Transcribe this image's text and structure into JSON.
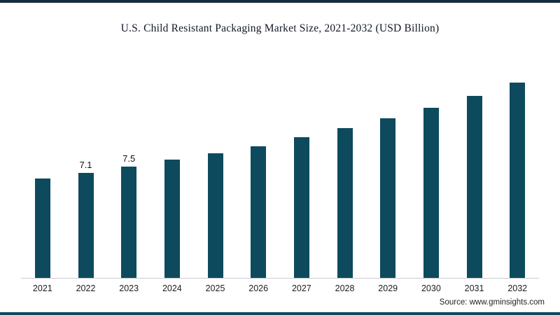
{
  "page": {
    "title": "U.S. Child Resistant Packaging Market Size, 2021-2032 (USD Billion)",
    "source": "Source: www.gminsights.com"
  },
  "colors": {
    "bar": "#0d4a5e",
    "top_rule": "#132f3e",
    "bottom_rule": "#0d4a5e",
    "axis_line": "#c9ccd1"
  },
  "chart_data": {
    "type": "bar",
    "title": "U.S. Child Resistant Packaging Market Size, 2021-2032 (USD Billion)",
    "categories": [
      "2021",
      "2022",
      "2023",
      "2024",
      "2025",
      "2026",
      "2027",
      "2028",
      "2029",
      "2030",
      "2031",
      "2032"
    ],
    "values": [
      6.7,
      7.1,
      7.5,
      8.0,
      8.4,
      8.9,
      9.5,
      10.1,
      10.8,
      11.5,
      12.3,
      13.2
    ],
    "data_labels": {
      "2022": "7.1",
      "2023": "7.5"
    },
    "xlabel": "",
    "ylabel": "",
    "ylim": [
      0,
      14
    ],
    "grid": false,
    "legend": "none",
    "bar_color": "#0d4a5e"
  }
}
